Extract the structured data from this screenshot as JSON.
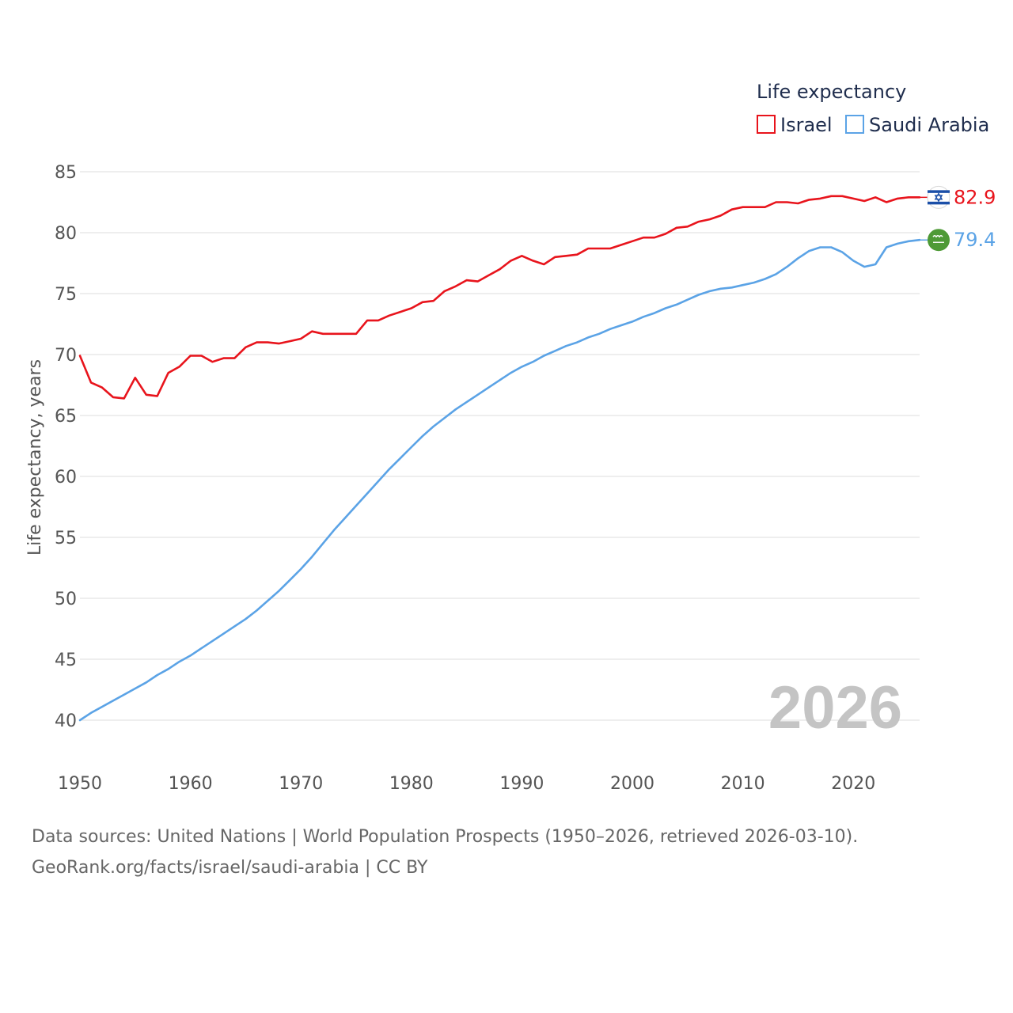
{
  "chart_data": {
    "type": "line",
    "legend_title": "Life expectancy",
    "ylabel": "Life expectancy, years",
    "xlabel": "",
    "xlim": [
      1950,
      2026
    ],
    "ylim": [
      40,
      85
    ],
    "x_ticks": [
      1950,
      1960,
      1970,
      1980,
      1990,
      2000,
      2010,
      2020
    ],
    "y_ticks": [
      40,
      45,
      50,
      55,
      60,
      65,
      70,
      75,
      80,
      85
    ],
    "grid": true,
    "legend_position": "top-right",
    "current_year": "2026",
    "x": [
      1950,
      1951,
      1952,
      1953,
      1954,
      1955,
      1956,
      1957,
      1958,
      1959,
      1960,
      1961,
      1962,
      1963,
      1964,
      1965,
      1966,
      1967,
      1968,
      1969,
      1970,
      1971,
      1972,
      1973,
      1974,
      1975,
      1976,
      1977,
      1978,
      1979,
      1980,
      1981,
      1982,
      1983,
      1984,
      1985,
      1986,
      1987,
      1988,
      1989,
      1990,
      1991,
      1992,
      1993,
      1994,
      1995,
      1996,
      1997,
      1998,
      1999,
      2000,
      2001,
      2002,
      2003,
      2004,
      2005,
      2006,
      2007,
      2008,
      2009,
      2010,
      2011,
      2012,
      2013,
      2014,
      2015,
      2016,
      2017,
      2018,
      2019,
      2020,
      2021,
      2022,
      2023,
      2024,
      2025,
      2026
    ],
    "series": [
      {
        "name": "Israel",
        "color": "#e8141c",
        "flag": "israel-flag-icon",
        "end_label": "82.9",
        "values": [
          69.9,
          67.7,
          67.3,
          66.5,
          66.4,
          68.1,
          66.7,
          66.6,
          68.5,
          69.0,
          69.9,
          69.9,
          69.4,
          69.7,
          69.7,
          70.6,
          71.0,
          71.0,
          70.9,
          71.1,
          71.3,
          71.9,
          71.7,
          71.7,
          71.7,
          71.7,
          72.8,
          72.8,
          73.2,
          73.5,
          73.8,
          74.3,
          74.4,
          75.2,
          75.6,
          76.1,
          76.0,
          76.5,
          77.0,
          77.7,
          78.1,
          77.7,
          77.4,
          78.0,
          78.1,
          78.2,
          78.7,
          78.7,
          78.7,
          79.0,
          79.3,
          79.6,
          79.6,
          79.9,
          80.4,
          80.5,
          80.9,
          81.1,
          81.4,
          81.9,
          82.1,
          82.1,
          82.1,
          82.5,
          82.5,
          82.4,
          82.7,
          82.8,
          83.0,
          83.0,
          82.8,
          82.6,
          82.9,
          82.5,
          82.8,
          82.9,
          82.9
        ]
      },
      {
        "name": "Saudi Arabia",
        "color": "#5ba3e6",
        "flag": "saudi-arabia-flag-icon",
        "end_label": "79.4",
        "values": [
          40.0,
          40.6,
          41.1,
          41.6,
          42.1,
          42.6,
          43.1,
          43.7,
          44.2,
          44.8,
          45.3,
          45.9,
          46.5,
          47.1,
          47.7,
          48.3,
          49.0,
          49.8,
          50.6,
          51.5,
          52.4,
          53.4,
          54.5,
          55.6,
          56.6,
          57.6,
          58.6,
          59.6,
          60.6,
          61.5,
          62.4,
          63.3,
          64.1,
          64.8,
          65.5,
          66.1,
          66.7,
          67.3,
          67.9,
          68.5,
          69.0,
          69.4,
          69.9,
          70.3,
          70.7,
          71.0,
          71.4,
          71.7,
          72.1,
          72.4,
          72.7,
          73.1,
          73.4,
          73.8,
          74.1,
          74.5,
          74.9,
          75.2,
          75.4,
          75.5,
          75.7,
          75.9,
          76.2,
          76.6,
          77.2,
          77.9,
          78.5,
          78.8,
          78.8,
          78.4,
          77.7,
          77.2,
          77.4,
          78.8,
          79.1,
          79.3,
          79.4
        ]
      }
    ]
  },
  "footer": {
    "source_line": "Data sources: United Nations | World Population Prospects (1950–2026, retrieved 2026-03-10).",
    "credit_line": "GeoRank.org/facts/israel/saudi-arabia | CC BY"
  }
}
